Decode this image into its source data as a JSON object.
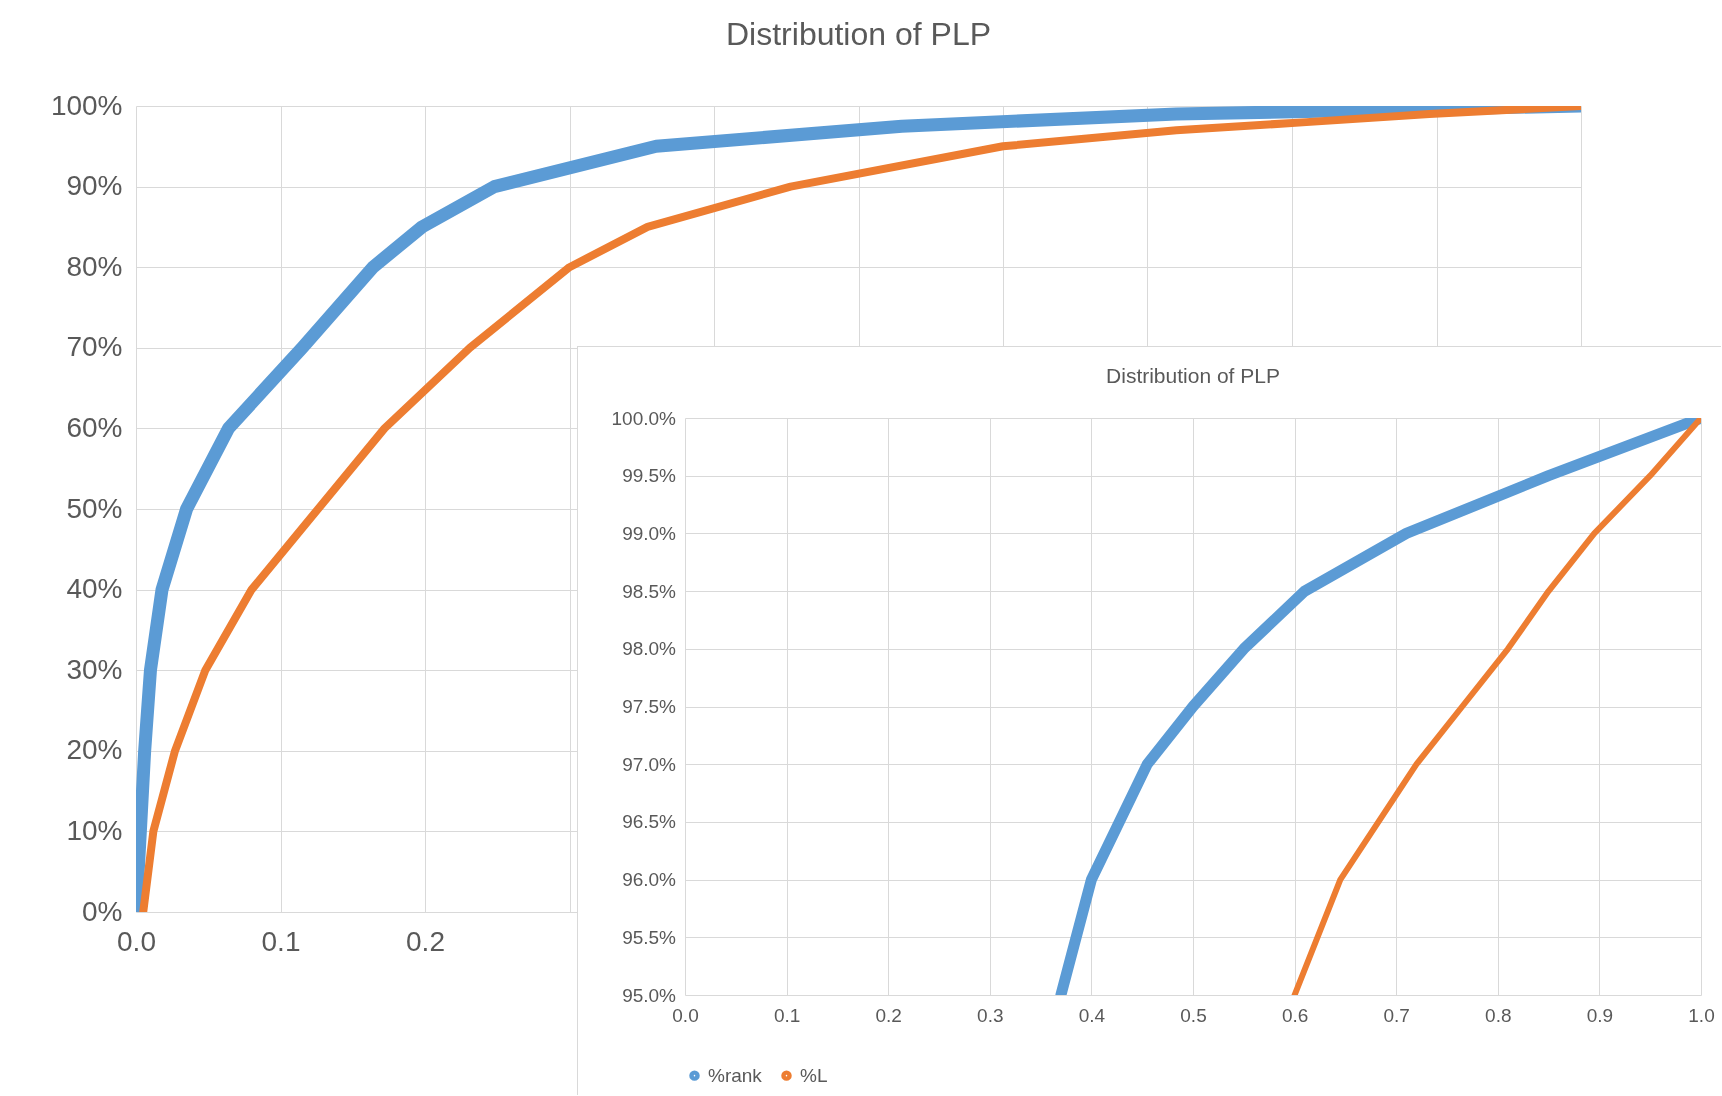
{
  "chart_data": [
    {
      "type": "line",
      "title": "Distribution of PLP",
      "grid": true,
      "legend": false,
      "line_style": "solid",
      "marker": "none",
      "xlim": [
        0,
        1
      ],
      "xticks": [
        {
          "value": 0,
          "label": "0.0"
        },
        {
          "value": 0.1,
          "label": "0.1"
        },
        {
          "value": 0.2,
          "label": "0.2"
        },
        {
          "value": 0.3,
          "label": null
        },
        {
          "value": 0.4,
          "label": null
        },
        {
          "value": 0.5,
          "label": null
        },
        {
          "value": 0.6,
          "label": null
        },
        {
          "value": 0.7,
          "label": null
        },
        {
          "value": 0.8,
          "label": null
        },
        {
          "value": 0.9,
          "label": null
        },
        {
          "value": 1,
          "label": null
        }
      ],
      "ylim": [
        0,
        100
      ],
      "yticks": [
        {
          "value": 0,
          "label": "0%"
        },
        {
          "value": 10,
          "label": "10%"
        },
        {
          "value": 20,
          "label": "20%"
        },
        {
          "value": 30,
          "label": "30%"
        },
        {
          "value": 40,
          "label": "40%"
        },
        {
          "value": 50,
          "label": "50%"
        },
        {
          "value": 60,
          "label": "60%"
        },
        {
          "value": 70,
          "label": "70%"
        },
        {
          "value": 80,
          "label": "80%"
        },
        {
          "value": 90,
          "label": "90%"
        },
        {
          "value": 100,
          "label": "100%"
        }
      ],
      "series": [
        {
          "color": "#5b9bd5",
          "x": [
            0,
            0.003,
            0.006,
            0.01,
            0.018,
            0.035,
            0.064,
            0.115,
            0.164,
            0.198,
            0.248,
            0.36,
            0.53,
            0.72,
            1.0
          ],
          "values": [
            0,
            10,
            20,
            30,
            40,
            50,
            60,
            70,
            80,
            85,
            90,
            95,
            97.5,
            99,
            100
          ]
        },
        {
          "color": "#ed7d31",
          "x": [
            0.005,
            0.012,
            0.027,
            0.048,
            0.08,
            0.126,
            0.172,
            0.231,
            0.3,
            0.354,
            0.453,
            0.6,
            0.72,
            0.81,
            0.895,
            1.0
          ],
          "values": [
            0,
            10,
            20,
            30,
            40,
            50,
            60,
            70,
            80,
            85,
            90,
            95,
            97,
            98,
            99,
            100
          ]
        }
      ]
    },
    {
      "type": "line",
      "title": "Distribution of PLP",
      "grid": true,
      "legend": "bottom",
      "line_style": "solid",
      "marker": "none",
      "xlim": [
        0,
        1
      ],
      "xticks": [
        {
          "value": 0,
          "label": "0.0"
        },
        {
          "value": 0.1,
          "label": "0.1"
        },
        {
          "value": 0.2,
          "label": "0.2"
        },
        {
          "value": 0.3,
          "label": "0.3"
        },
        {
          "value": 0.4,
          "label": "0.4"
        },
        {
          "value": 0.5,
          "label": "0.5"
        },
        {
          "value": 0.6,
          "label": "0.6"
        },
        {
          "value": 0.7,
          "label": "0.7"
        },
        {
          "value": 0.8,
          "label": "0.8"
        },
        {
          "value": 0.9,
          "label": "0.9"
        },
        {
          "value": 1,
          "label": "1.0"
        }
      ],
      "ylim": [
        95,
        100
      ],
      "yticks": [
        {
          "value": 95,
          "label": "95.0%"
        },
        {
          "value": 95.5,
          "label": "95.5%"
        },
        {
          "value": 96,
          "label": "96.0%"
        },
        {
          "value": 96.5,
          "label": "96.5%"
        },
        {
          "value": 97,
          "label": "97.0%"
        },
        {
          "value": 97.5,
          "label": "97.5%"
        },
        {
          "value": 98,
          "label": "98.0%"
        },
        {
          "value": 98.5,
          "label": "98.5%"
        },
        {
          "value": 99,
          "label": "99.0%"
        },
        {
          "value": 99.5,
          "label": "99.5%"
        },
        {
          "value": 100,
          "label": "100.0%"
        }
      ],
      "series": [
        {
          "name": "%rank",
          "color": "#5b9bd5",
          "x": [
            0.37,
            0.4,
            0.455,
            0.5,
            0.55,
            0.61,
            0.71,
            0.85,
            1.0
          ],
          "values": [
            95,
            96,
            97,
            97.5,
            98,
            98.5,
            99,
            99.5,
            100
          ]
        },
        {
          "name": "%L",
          "color": "#ed7d31",
          "x": [
            0.6,
            0.645,
            0.72,
            0.765,
            0.81,
            0.85,
            0.895,
            0.95,
            1.0
          ],
          "values": [
            95,
            96,
            97,
            97.5,
            98,
            98.5,
            99,
            99.5,
            100
          ]
        }
      ]
    }
  ]
}
